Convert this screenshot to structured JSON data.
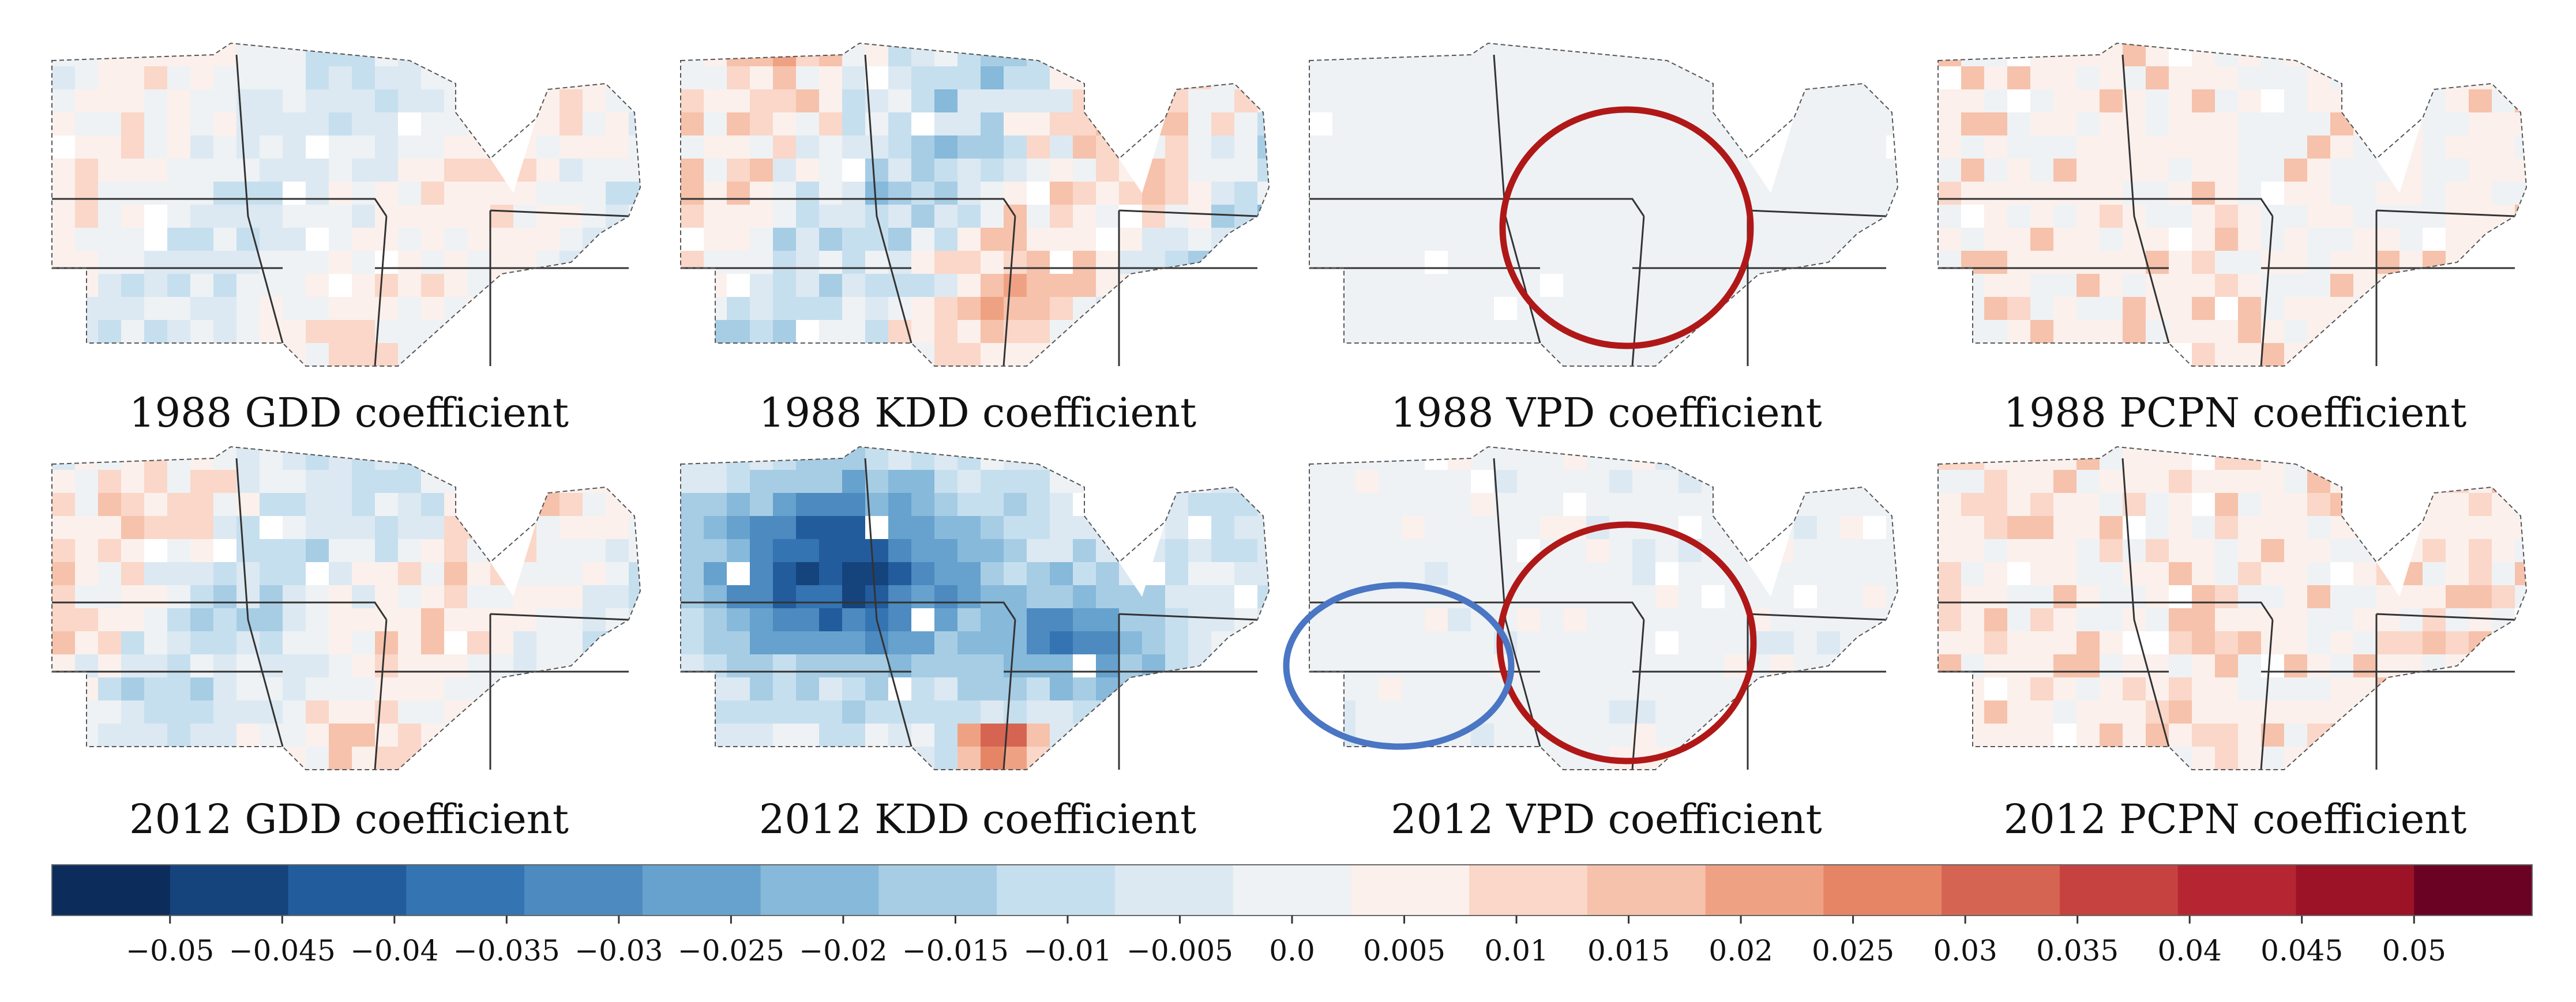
{
  "chart_data": {
    "type": "heatmap",
    "description_of_layout": "2 rows x 4 columns of US Midwest maps with a shared diverging colorbar",
    "panels": [
      {
        "id": "gdd-1988",
        "title": "1988 GDD coefficient",
        "pattern": "mixed",
        "intensity": 0.25,
        "seed": 11
      },
      {
        "id": "kdd-1988",
        "title": "1988 KDD coefficient",
        "pattern": "mixed",
        "intensity": 0.45,
        "seed": 23
      },
      {
        "id": "vpd-1988",
        "title": "1988 VPD coefficient",
        "pattern": "pale",
        "intensity": 0.12,
        "seed": 37
      },
      {
        "id": "pcpn-1988",
        "title": "1988 PCPN coefficient",
        "pattern": "warm",
        "intensity": 0.28,
        "seed": 41
      },
      {
        "id": "gdd-2012",
        "title": "2012 GDD coefficient",
        "pattern": "mixed",
        "intensity": 0.35,
        "seed": 53
      },
      {
        "id": "kdd-2012",
        "title": "2012 KDD coefficient",
        "pattern": "cool",
        "intensity": 0.85,
        "seed": 67
      },
      {
        "id": "vpd-2012",
        "title": "2012 VPD coefficient",
        "pattern": "pale",
        "intensity": 0.2,
        "seed": 71
      },
      {
        "id": "pcpn-2012",
        "title": "2012 PCPN coefficient",
        "pattern": "warm",
        "intensity": 0.35,
        "seed": 83
      }
    ],
    "annotations": [
      {
        "panel": "vpd-1988",
        "shape": "circle",
        "color": "#b01818"
      },
      {
        "panel": "vpd-2012",
        "shape": "circle",
        "color": "#b01818"
      },
      {
        "panel": "vpd-2012",
        "shape": "ellipse",
        "color": "#4a76c4"
      }
    ],
    "colorbar": {
      "min": -0.05,
      "max": 0.05,
      "step": 0.005,
      "tick_labels": [
        "−0.05",
        "−0.045",
        "−0.04",
        "−0.035",
        "−0.03",
        "−0.025",
        "−0.02",
        "−0.015",
        "−0.01",
        "−0.005",
        "0.0",
        "0.005",
        "0.01",
        "0.015",
        "0.02",
        "0.025",
        "0.03",
        "0.035",
        "0.04",
        "0.045",
        "0.05"
      ],
      "colors": [
        "#0c2c5c",
        "#15437c",
        "#225c9c",
        "#3574b2",
        "#4c8ac0",
        "#66a2cd",
        "#86b9da",
        "#a7cde5",
        "#c6dfee",
        "#dce9f2",
        "#eef2f5",
        "#fbf0ec",
        "#fad7c8",
        "#f6c2ab",
        "#efa283",
        "#e58566",
        "#d66452",
        "#c64240",
        "#b52632",
        "#9c1227",
        "#6a0323"
      ]
    }
  }
}
